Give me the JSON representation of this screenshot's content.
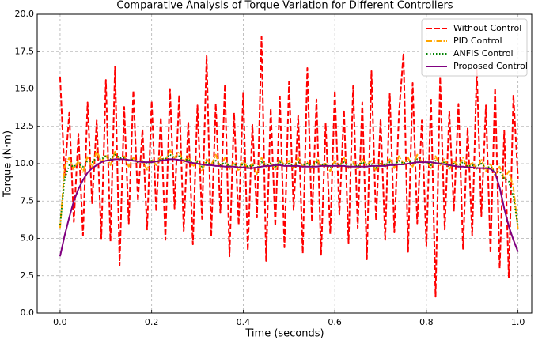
{
  "chart_data": {
    "type": "line",
    "title": "Comparative Analysis of Torque Variation for Different Controllers",
    "xlabel": "Time (seconds)",
    "ylabel": "Torque (N·m)",
    "x": [
      0,
      0.01,
      0.02,
      0.03,
      0.04,
      0.05,
      0.06,
      0.07,
      0.08,
      0.09,
      0.1,
      0.11,
      0.12,
      0.13,
      0.14,
      0.15,
      0.16,
      0.17,
      0.18,
      0.19,
      0.2,
      0.21,
      0.22,
      0.23,
      0.24,
      0.25,
      0.26,
      0.27,
      0.28,
      0.29,
      0.3,
      0.31,
      0.32,
      0.33,
      0.34,
      0.35,
      0.36,
      0.37,
      0.38,
      0.39,
      0.4,
      0.41,
      0.42,
      0.43,
      0.44,
      0.45,
      0.46,
      0.47,
      0.48,
      0.49,
      0.5,
      0.51,
      0.52,
      0.53,
      0.54,
      0.55,
      0.56,
      0.57,
      0.58,
      0.59,
      0.6,
      0.61,
      0.62,
      0.63,
      0.64,
      0.65,
      0.66,
      0.67,
      0.68,
      0.69,
      0.7,
      0.71,
      0.72,
      0.73,
      0.74,
      0.75,
      0.76,
      0.77,
      0.78,
      0.79,
      0.8,
      0.81,
      0.82,
      0.83,
      0.84,
      0.85,
      0.86,
      0.87,
      0.88,
      0.89,
      0.9,
      0.91,
      0.92,
      0.93,
      0.94,
      0.95,
      0.96,
      0.97,
      0.98,
      0.99,
      1
    ],
    "series": [
      {
        "name": "Without Control",
        "color": "#ff0000",
        "dash": "dashed",
        "values": [
          15.8,
          9.2,
          13.4,
          6.1,
          12.0,
          5.2,
          14.1,
          7.3,
          12.9,
          5.0,
          15.6,
          4.8,
          16.5,
          3.2,
          13.8,
          6.0,
          14.9,
          7.5,
          12.3,
          5.6,
          14.2,
          6.8,
          13.1,
          4.9,
          15.0,
          7.0,
          14.6,
          5.5,
          12.8,
          4.6,
          13.9,
          6.3,
          17.2,
          5.1,
          14.0,
          6.7,
          15.3,
          3.8,
          13.4,
          5.9,
          14.8,
          4.2,
          12.6,
          6.4,
          18.5,
          3.5,
          13.7,
          5.8,
          14.5,
          4.4,
          15.5,
          6.9,
          13.2,
          4.0,
          16.4,
          6.1,
          14.3,
          3.9,
          12.7,
          5.3,
          14.9,
          6.6,
          13.6,
          4.7,
          15.2,
          5.7,
          14.1,
          3.6,
          16.2,
          6.2,
          13.0,
          4.9,
          14.7,
          5.4,
          13.3,
          17.4,
          4.1,
          15.4,
          6.0,
          12.9,
          4.5,
          14.4,
          1.1,
          15.8,
          5.6,
          13.5,
          6.8,
          14.0,
          4.3,
          12.4,
          5.2,
          16.3,
          6.5,
          13.9,
          4.0,
          15.1,
          3.0,
          12.2,
          2.4,
          14.6,
          9.0
        ]
      },
      {
        "name": "PID Control",
        "color": "#ffa500",
        "dash": "dashdot",
        "values": [
          5.7,
          9.8,
          10.4,
          9.6,
          10.2,
          9.4,
          10.5,
          9.7,
          10.9,
          10.1,
          10.6,
          9.9,
          10.8,
          10.2,
          10.5,
          9.8,
          10.4,
          10.1,
          10.2,
          9.6,
          10.3,
          9.9,
          10.5,
          10.2,
          10.9,
          10.4,
          10.8,
          10.1,
          10.5,
          9.8,
          10.2,
          9.5,
          10.3,
          9.9,
          10.6,
          9.8,
          10.4,
          9.6,
          10.1,
          9.5,
          10.2,
          9.7,
          10.0,
          9.3,
          10.4,
          9.8,
          10.1,
          9.6,
          10.3,
          9.9,
          10.2,
          9.7,
          10.4,
          9.8,
          10.1,
          9.6,
          10.3,
          9.9,
          10.0,
          9.5,
          10.2,
          9.8,
          10.4,
          9.7,
          10.1,
          9.6,
          10.3,
          9.9,
          10.2,
          9.5,
          10.1,
          9.8,
          10.3,
          9.7,
          10.5,
          10.0,
          10.4,
          9.8,
          10.6,
          10.1,
          10.2,
          9.7,
          10.5,
          9.9,
          10.3,
          9.6,
          10.2,
          9.8,
          10.4,
          9.7,
          10.1,
          9.6,
          10.3,
          9.5,
          10.0,
          9.2,
          9.8,
          9.0,
          9.5,
          8.4,
          5.6
        ]
      },
      {
        "name": "ANFIS Control",
        "color": "#008000",
        "dash": "dotted",
        "values": [
          5.9,
          9.0,
          9.9,
          9.8,
          10.0,
          9.8,
          10.2,
          10.1,
          10.4,
          10.3,
          10.5,
          10.3,
          10.6,
          10.4,
          10.4,
          10.2,
          10.3,
          10.1,
          10.2,
          10.0,
          10.2,
          10.1,
          10.3,
          10.3,
          10.6,
          10.4,
          10.5,
          10.2,
          10.3,
          10.0,
          10.1,
          9.8,
          10.1,
          9.9,
          10.2,
          9.9,
          10.1,
          9.8,
          10.0,
          9.7,
          10.0,
          9.8,
          9.9,
          9.7,
          10.1,
          9.9,
          10.0,
          9.8,
          10.1,
          9.9,
          10.0,
          9.8,
          10.1,
          9.9,
          10.0,
          9.8,
          10.1,
          9.9,
          9.9,
          9.7,
          10.0,
          9.9,
          10.1,
          9.8,
          10.0,
          9.8,
          10.1,
          9.9,
          10.0,
          9.7,
          10.0,
          9.9,
          10.1,
          9.9,
          10.2,
          10.0,
          10.2,
          10.0,
          10.3,
          10.1,
          10.1,
          9.9,
          10.2,
          10.0,
          10.1,
          9.8,
          10.0,
          9.9,
          10.1,
          9.8,
          9.9,
          9.8,
          10.0,
          9.7,
          9.8,
          9.4,
          9.5,
          9.0,
          8.8,
          7.8,
          5.8
        ]
      },
      {
        "name": "Proposed Control",
        "color": "#800080",
        "dash": "solid",
        "values": [
          3.8,
          5.2,
          6.4,
          7.5,
          8.3,
          8.9,
          9.4,
          9.7,
          9.9,
          10.1,
          10.2,
          10.25,
          10.3,
          10.3,
          10.3,
          10.25,
          10.2,
          10.15,
          10.1,
          10.1,
          10.1,
          10.15,
          10.2,
          10.25,
          10.3,
          10.3,
          10.25,
          10.2,
          10.1,
          10.05,
          10.0,
          9.95,
          9.9,
          9.9,
          9.85,
          9.85,
          9.8,
          9.8,
          9.8,
          9.75,
          9.75,
          9.7,
          9.7,
          9.75,
          9.8,
          9.85,
          9.85,
          9.9,
          9.9,
          9.85,
          9.85,
          9.85,
          9.85,
          9.8,
          9.8,
          9.8,
          9.8,
          9.85,
          9.85,
          9.85,
          9.85,
          9.85,
          9.85,
          9.8,
          9.8,
          9.8,
          9.8,
          9.8,
          9.85,
          9.85,
          9.85,
          9.85,
          9.9,
          9.9,
          9.95,
          9.95,
          10.0,
          10.05,
          10.1,
          10.1,
          10.1,
          10.1,
          10.05,
          10.0,
          9.95,
          9.9,
          9.85,
          9.8,
          9.8,
          9.75,
          9.75,
          9.7,
          9.7,
          9.7,
          9.65,
          9.4,
          8.4,
          7.0,
          5.8,
          4.9,
          4.1
        ]
      }
    ],
    "xlim": [
      -0.05,
      1.03
    ],
    "ylim": [
      0,
      20
    ],
    "xticks": [
      {
        "value": 0,
        "label": "0.0"
      },
      0.2,
      0.4,
      0.6,
      0.8,
      {
        "value": 1,
        "label": "1.0"
      }
    ],
    "yticks": [
      {
        "value": 0,
        "label": "0.0"
      },
      2.5,
      {
        "value": 5,
        "label": "5.0"
      },
      7.5,
      {
        "value": 10,
        "label": "10.0"
      },
      12.5,
      {
        "value": 15,
        "label": "15.0"
      },
      17.5,
      {
        "value": 20,
        "label": "20.0"
      }
    ],
    "grid": true,
    "legend": "upper right"
  }
}
